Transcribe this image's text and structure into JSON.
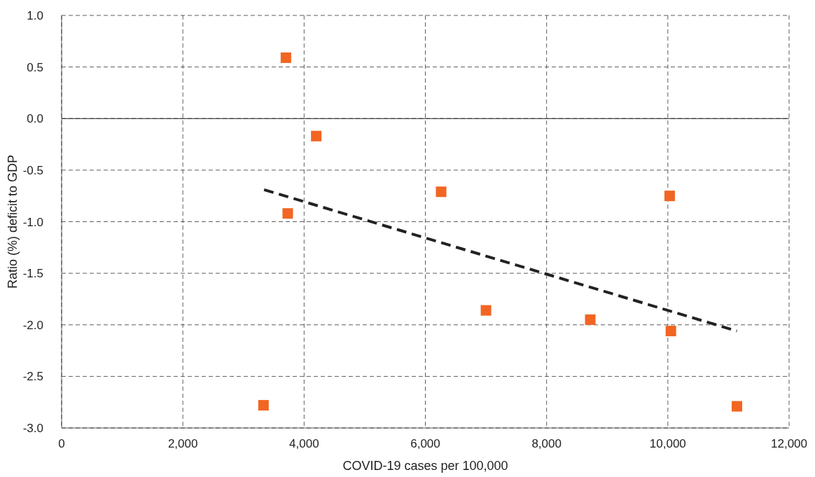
{
  "chart_data": {
    "type": "scatter",
    "xlabel": "COVID-19 cases per 100,000",
    "ylabel": "Ratio (%) deficit to GDP",
    "xlim": [
      0,
      12000
    ],
    "ylim": [
      -3,
      1
    ],
    "xticks": [
      {
        "value": 0,
        "label": "0"
      },
      {
        "value": 2000,
        "label": "2,000"
      },
      {
        "value": 4000,
        "label": "4,000"
      },
      {
        "value": 6000,
        "label": "6,000"
      },
      {
        "value": 8000,
        "label": "8,000"
      },
      {
        "value": 10000,
        "label": "10,000"
      },
      {
        "value": 12000,
        "label": "12,000"
      }
    ],
    "yticks": [
      {
        "value": 1,
        "label": "1.0"
      },
      {
        "value": 0.5,
        "label": "0.5"
      },
      {
        "value": 0,
        "label": "0.0"
      },
      {
        "value": -0.5,
        "label": "-0.5"
      },
      {
        "value": -1,
        "label": "-1.0"
      },
      {
        "value": -1.5,
        "label": "-1.5"
      },
      {
        "value": -2,
        "label": "-2.0"
      },
      {
        "value": -2.5,
        "label": "-2.5"
      },
      {
        "value": -3,
        "label": "-3.0"
      }
    ],
    "grid": true,
    "marker": "square",
    "ref_lines": [
      {
        "axis": "y",
        "value": 0,
        "color": "#222222"
      }
    ],
    "series": [
      {
        "color": "#f26522",
        "x": [
          3700,
          4200,
          6260,
          10030,
          3730,
          7000,
          8720,
          10050,
          3330,
          11140
        ],
        "values": [
          0.59,
          -0.17,
          -0.71,
          -0.75,
          -0.92,
          -1.86,
          -1.95,
          -2.06,
          -2.78,
          -2.79
        ]
      },
      {
        "type": "line",
        "color": "#222222",
        "line_style": "dashed",
        "marker": "none",
        "x": [
          3340,
          11140
        ],
        "values": [
          -0.69,
          -2.06
        ]
      }
    ]
  }
}
